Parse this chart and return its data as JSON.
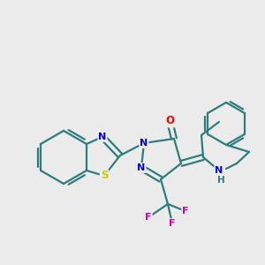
{
  "background_color": "#ebebeb",
  "bond_color": "#2d7d7d",
  "atom_colors": {
    "S": "#cccc00",
    "N": "#0000ee",
    "O": "#ff0000",
    "F": "#dd00aa",
    "NH": "#2d7d7d",
    "C": "#2d7d7d"
  },
  "figsize": [
    3.0,
    3.0
  ],
  "dpi": 100
}
